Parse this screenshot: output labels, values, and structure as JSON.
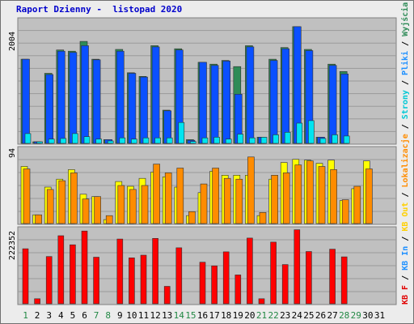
{
  "title": "Raport Dzienny -  listopad 2020",
  "colors": {
    "background": "#ececec",
    "panel": "#c0c0c0",
    "grid": "#9a9a9a",
    "weekday_label": "#000000",
    "weekend_label": "#228844"
  },
  "side_legend": [
    {
      "text": "Wyjścia",
      "color": "#2e8b57"
    },
    {
      "text": " / ",
      "color": "#000000"
    },
    {
      "text": "Pliki",
      "color": "#1e90ff"
    },
    {
      "text": " / ",
      "color": "#000000"
    },
    {
      "text": "Strony",
      "color": "#00c8d4"
    },
    {
      "text": " / ",
      "color": "#000000"
    },
    {
      "text": "Lokalizacje",
      "color": "#ff8c00"
    },
    {
      "text": " / ",
      "color": "#000000"
    },
    {
      "text": "KB Out",
      "color": "#ffd000"
    },
    {
      "text": " / ",
      "color": "#000000"
    },
    {
      "text": "KB In",
      "color": "#1e90ff"
    },
    {
      "text": " / ",
      "color": "#000000"
    },
    {
      "text": "KB F",
      "color": "#e00000"
    }
  ],
  "chart_data": [
    {
      "type": "bar",
      "panel": "hits",
      "y_max_label": "2004",
      "ylim": [
        0,
        2004
      ],
      "categories": [
        "1",
        "2",
        "3",
        "4",
        "5",
        "6",
        "7",
        "8",
        "9",
        "10",
        "11",
        "12",
        "13",
        "14",
        "15",
        "16",
        "17",
        "18",
        "19",
        "20",
        "21",
        "22",
        "23",
        "24",
        "25",
        "26",
        "27",
        "28",
        "29",
        "30",
        "31"
      ],
      "weekend_days": [
        1,
        7,
        8,
        14,
        15,
        21,
        22,
        28,
        29
      ],
      "series": [
        {
          "key": "wyjscia",
          "color": "#2e8b57",
          "values": [
            1370,
            20,
            1140,
            1520,
            1500,
            1660,
            1370,
            60,
            1530,
            1150,
            1090,
            1590,
            540,
            1540,
            60,
            1320,
            1290,
            1350,
            1250,
            1590,
            100,
            1370,
            1560,
            1900,
            1530,
            100,
            1290,
            1170,
            0,
            0,
            0
          ]
        },
        {
          "key": "pliki",
          "color": "#0a50ff",
          "values": [
            1370,
            20,
            1120,
            1500,
            1480,
            1590,
            1360,
            60,
            1500,
            1140,
            1080,
            1570,
            530,
            1520,
            50,
            1320,
            1270,
            1340,
            800,
            1570,
            100,
            1350,
            1540,
            1900,
            1510,
            100,
            1270,
            1130,
            0,
            0,
            0
          ]
        },
        {
          "key": "strony",
          "color": "#00e4f0",
          "values": [
            160,
            20,
            70,
            80,
            160,
            110,
            70,
            40,
            90,
            70,
            90,
            90,
            90,
            340,
            30,
            90,
            100,
            70,
            150,
            90,
            100,
            140,
            180,
            330,
            370,
            80,
            140,
            120,
            0,
            0,
            0
          ]
        }
      ]
    },
    {
      "type": "bar",
      "panel": "visits",
      "y_max_label": "94",
      "ylim": [
        0,
        94
      ],
      "categories": [
        "1",
        "2",
        "3",
        "4",
        "5",
        "6",
        "7",
        "8",
        "9",
        "10",
        "11",
        "12",
        "13",
        "14",
        "15",
        "16",
        "17",
        "18",
        "19",
        "20",
        "21",
        "22",
        "23",
        "24",
        "25",
        "26",
        "27",
        "28",
        "29",
        "30",
        "31"
      ],
      "series": [
        {
          "key": "kb_out",
          "color": "#ffff00",
          "values": [
            72,
            11,
            46,
            56,
            68,
            37,
            34,
            5,
            53,
            47,
            57,
            65,
            59,
            46,
            10,
            39,
            66,
            61,
            61,
            61,
            10,
            56,
            77,
            81,
            80,
            76,
            80,
            29,
            44,
            79,
            0
          ]
        },
        {
          "key": "lokalizacje",
          "color": "#ff8c00",
          "values": [
            69,
            11,
            43,
            54,
            64,
            31,
            34,
            10,
            48,
            43,
            48,
            75,
            64,
            70,
            15,
            50,
            70,
            57,
            56,
            84,
            14,
            61,
            64,
            74,
            79,
            72,
            68,
            30,
            47,
            69,
            0
          ]
        }
      ]
    },
    {
      "type": "bar",
      "panel": "kb",
      "y_max_label": "222352",
      "ylim": [
        0,
        222352
      ],
      "categories": [
        "1",
        "2",
        "3",
        "4",
        "5",
        "6",
        "7",
        "8",
        "9",
        "10",
        "11",
        "12",
        "13",
        "14",
        "15",
        "16",
        "17",
        "18",
        "19",
        "20",
        "21",
        "22",
        "23",
        "24",
        "25",
        "26",
        "27",
        "28",
        "29",
        "30",
        "31"
      ],
      "series": [
        {
          "key": "kb_f",
          "color": "#ff0000",
          "values": [
            164000,
            15000,
            141000,
            203000,
            176000,
            217000,
            139000,
            0,
            193000,
            137000,
            145000,
            195000,
            52000,
            167000,
            0,
            124000,
            113000,
            155000,
            86000,
            196000,
            15000,
            184000,
            117000,
            221000,
            156000,
            0,
            163000,
            140000,
            0,
            0,
            0
          ]
        }
      ]
    }
  ]
}
